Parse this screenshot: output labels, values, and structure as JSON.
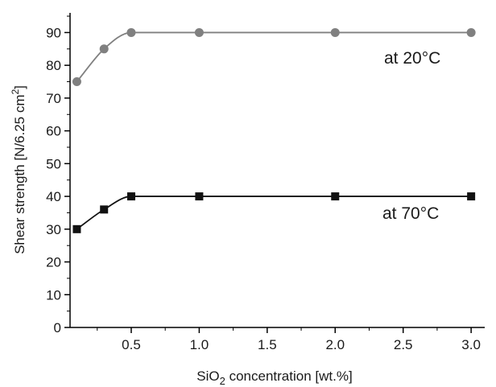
{
  "chart_data": {
    "type": "line",
    "title": "",
    "xlabel": {
      "pre": "SiO",
      "sub": "2",
      "post": " concentration [wt.%]"
    },
    "ylabel": {
      "pre": "Shear strength [N/6.25 cm",
      "sup": "2",
      "post": "]"
    },
    "xlim": [
      0.05,
      3.1
    ],
    "ylim": [
      0,
      96
    ],
    "x_ticks": [
      0.5,
      1.0,
      1.5,
      2.0,
      2.5,
      3.0
    ],
    "x_tick_labels": [
      "0.5",
      "1.0",
      "1.5",
      "2.0",
      "2.5",
      "3.0"
    ],
    "y_ticks": [
      0,
      10,
      20,
      30,
      40,
      50,
      60,
      70,
      80,
      90
    ],
    "y_tick_labels": [
      "0",
      "10",
      "20",
      "30",
      "40",
      "50",
      "60",
      "70",
      "80",
      "90"
    ],
    "grid": false,
    "legend": "none",
    "series": [
      {
        "label": "at 20°C",
        "marker": "circle",
        "color": "#808080",
        "x": [
          0.1,
          0.3,
          0.5,
          1.0,
          2.0,
          3.0
        ],
        "y": [
          75,
          85,
          90,
          90,
          90,
          90
        ]
      },
      {
        "label": "at 70°C",
        "marker": "square",
        "color": "#111111",
        "x": [
          0.1,
          0.3,
          0.5,
          1.0,
          2.0,
          3.0
        ],
        "y": [
          30,
          36,
          40,
          40,
          40,
          40
        ]
      }
    ]
  }
}
